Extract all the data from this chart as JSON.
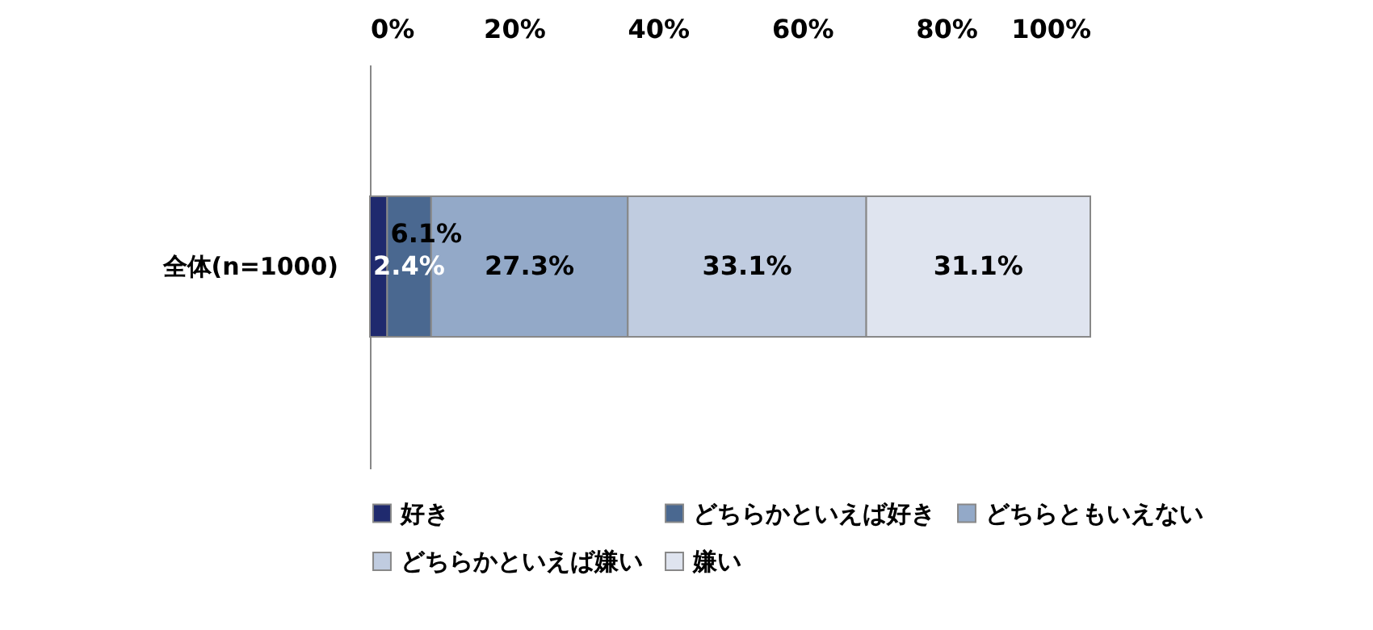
{
  "chart_data": {
    "type": "bar",
    "orientation": "horizontal",
    "stacked": true,
    "categories": [
      "全体(n=1000)"
    ],
    "series": [
      {
        "name": "好き",
        "color": "#1f2a6e",
        "values": [
          2.4
        ],
        "value_labels": [
          "2.4%"
        ]
      },
      {
        "name": "どちらかといえば好き",
        "color": "#4a6890",
        "values": [
          6.1
        ],
        "value_labels": [
          "6.1%"
        ]
      },
      {
        "name": "どちらともいえない",
        "color": "#93a9c8",
        "values": [
          27.3
        ],
        "value_labels": [
          "27.3%"
        ]
      },
      {
        "name": "どちらかといえば嫌い",
        "color": "#c0cce0",
        "values": [
          33.1
        ],
        "value_labels": [
          "33.1%"
        ]
      },
      {
        "name": "嫌い",
        "color": "#dfe4ef",
        "values": [
          31.1
        ],
        "value_labels": [
          "31.1%"
        ]
      }
    ],
    "xlim": [
      0,
      100
    ],
    "xticks": [
      {
        "value": 0,
        "label": "0%"
      },
      {
        "value": 20,
        "label": "20%"
      },
      {
        "value": 40,
        "label": "40%"
      },
      {
        "value": 60,
        "label": "60%"
      },
      {
        "value": 80,
        "label": "80%"
      },
      {
        "value": 100,
        "label": "100%"
      }
    ],
    "grid": false,
    "legend": "bottom"
  }
}
